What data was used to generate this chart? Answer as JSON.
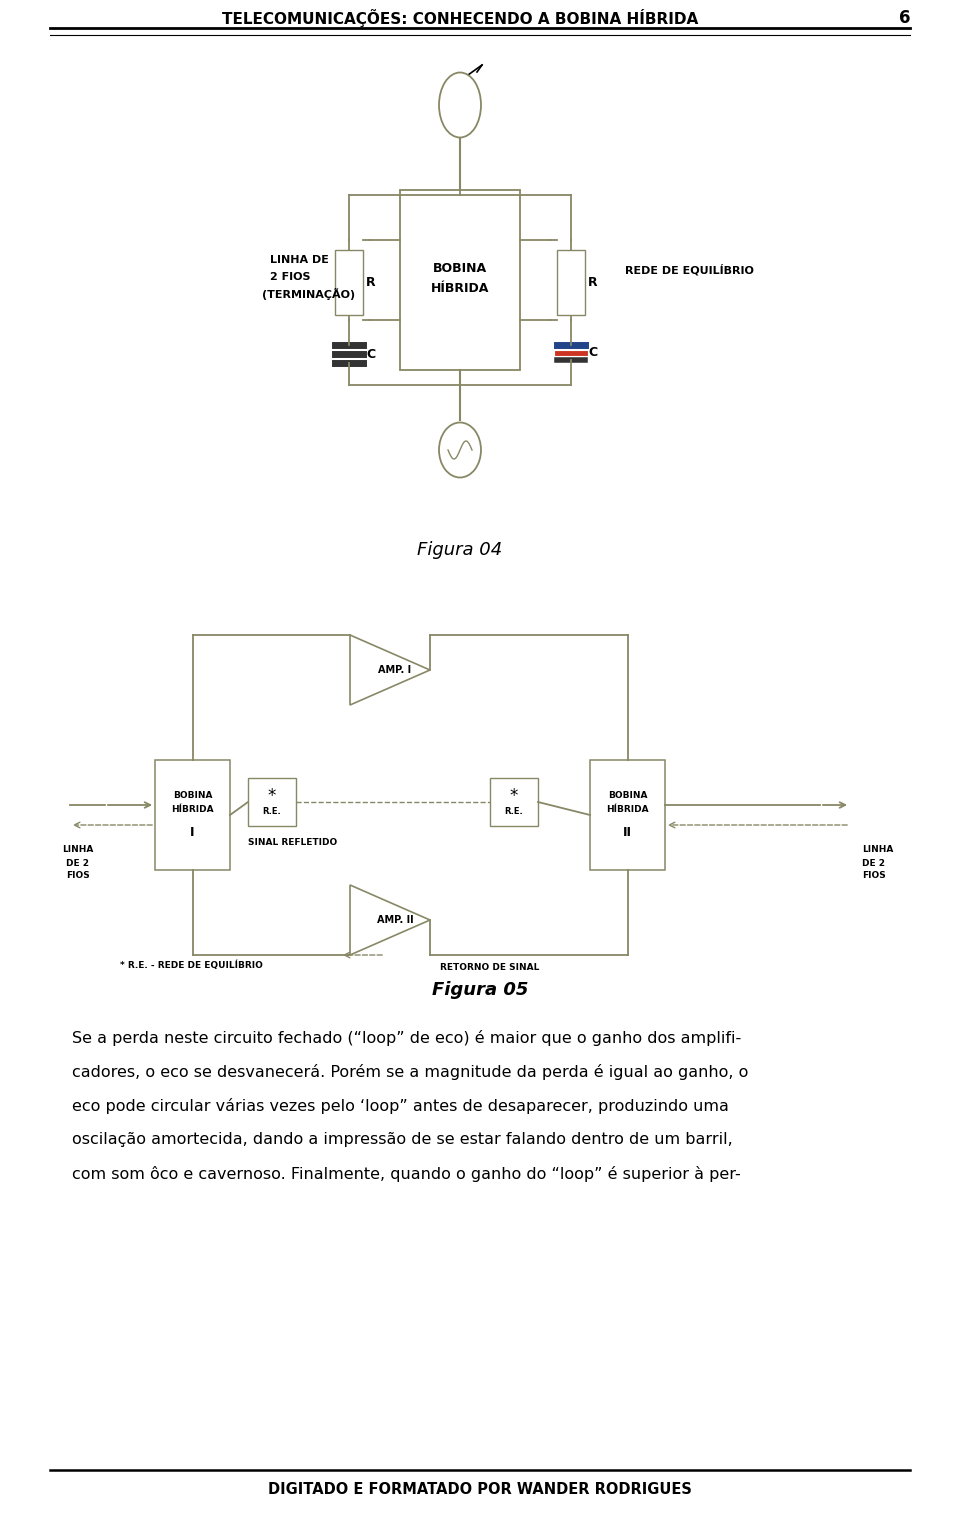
{
  "header_title": "TELECOMUNICAÇÕES: CONHECENDO A BOBINA HÍBRIDA",
  "header_page": "6",
  "figura04_label": "Figura 04",
  "figura05_label": "Figura 05",
  "body_para1_line1": "Se a perda neste circuito fechado (“loop” de eco) é maior que o ganho dos amplifi-",
  "body_para1_line2": "cadores, o eco se desvanecerá.",
  "body_para2_line1": "Porém se a magnitude da perda é igual ao ganho, o",
  "body_para2_line2": "eco pode circular várias vezes pelo ‘loop” antes de desaparecer, produzindo uma",
  "body_para2_line3": "oscilação amortecida, dando a impressão de se estar falando dentro de um barril,",
  "body_para2_line4": "com som ôco e cavernoso.",
  "body_para3": "Finalmente, quando o ganho do “loop” é superior à per-",
  "footer_text": "DIGITADO E FORMATADO POR WANDER RODRIGUES",
  "bg_color": "#ffffff",
  "text_color": "#000000",
  "cc04": "#888866",
  "cc05": "#888866"
}
